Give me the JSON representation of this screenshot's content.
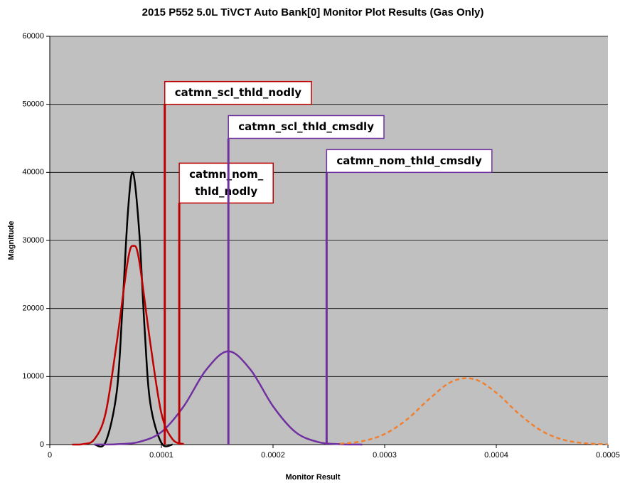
{
  "chart_data": {
    "type": "line",
    "title": "2015 P552 5.0L TiVCT Auto Bank[0] Monitor Plot Results (Gas Only)",
    "x_label": "Monitor Result",
    "y_label": "Magnitude",
    "xlim": [
      0,
      0.0005
    ],
    "xticks": [
      0,
      0.0001,
      0.0002,
      0.0003,
      0.0004,
      0.0005
    ],
    "ylim": [
      0,
      60000
    ],
    "yticks": [
      0,
      10000,
      20000,
      30000,
      40000,
      50000,
      60000
    ],
    "grid": true,
    "series": [
      {
        "color": "#000000",
        "dashed": false,
        "x": [
          4e-05,
          5e-05,
          6e-05,
          6.5e-05,
          7e-05,
          7.45e-05,
          8e-05,
          8.5e-05,
          9e-05,
          0.0001,
          0.00011
        ],
        "values": [
          0,
          368,
          7760,
          19760,
          34150,
          40000,
          31580,
          16900,
          6120,
          250,
          0
        ]
      },
      {
        "color": "#c00000",
        "dashed": false,
        "x": [
          2e-05,
          3e-05,
          4e-05,
          5e-05,
          6e-05,
          7e-05,
          7.5e-05,
          8e-05,
          9e-05,
          0.0001,
          0.00011,
          0.00012
        ],
        "values": [
          4,
          73,
          780,
          4590,
          15000,
          27120,
          29200,
          27120,
          15000,
          4590,
          780,
          73
        ]
      },
      {
        "color": "#7030a0",
        "dashed": false,
        "x": [
          4e-05,
          6e-05,
          8e-05,
          0.0001,
          0.00012,
          0.00014,
          0.00016,
          0.00018,
          0.0002,
          0.00022,
          0.00024,
          0.00026,
          0.00028
        ],
        "values": [
          5,
          53,
          390,
          1850,
          5630,
          10970,
          13700,
          10970,
          5630,
          1850,
          390,
          53,
          5
        ]
      },
      {
        "color": "#f08030",
        "dashed": true,
        "x": [
          0.00026,
          0.00028,
          0.0003,
          0.00032,
          0.00034,
          0.00036,
          0.00038,
          0.0004,
          0.00042,
          0.00044,
          0.00046,
          0.00048,
          0.0005
        ],
        "values": [
          118,
          493,
          1550,
          3700,
          6720,
          9240,
          9630,
          7620,
          4560,
          2070,
          713,
          187,
          37
        ]
      }
    ],
    "thresholds": [
      {
        "label": [
          "catmn_scl_thld_nodly"
        ],
        "x": 0.000103,
        "top": 50000,
        "color": "#c00000"
      },
      {
        "label": [
          "catmn_nom_",
          "thld_nodly"
        ],
        "x": 0.000116,
        "top": 35500,
        "color": "#c00000"
      },
      {
        "label": [
          "catmn_scl_thld_cmsdly"
        ],
        "x": 0.00016,
        "top": 45000,
        "color": "#7030a0"
      },
      {
        "label": [
          "catmn_nom_thld_cmsdly"
        ],
        "x": 0.000248,
        "top": 40000,
        "color": "#7030a0"
      }
    ]
  }
}
